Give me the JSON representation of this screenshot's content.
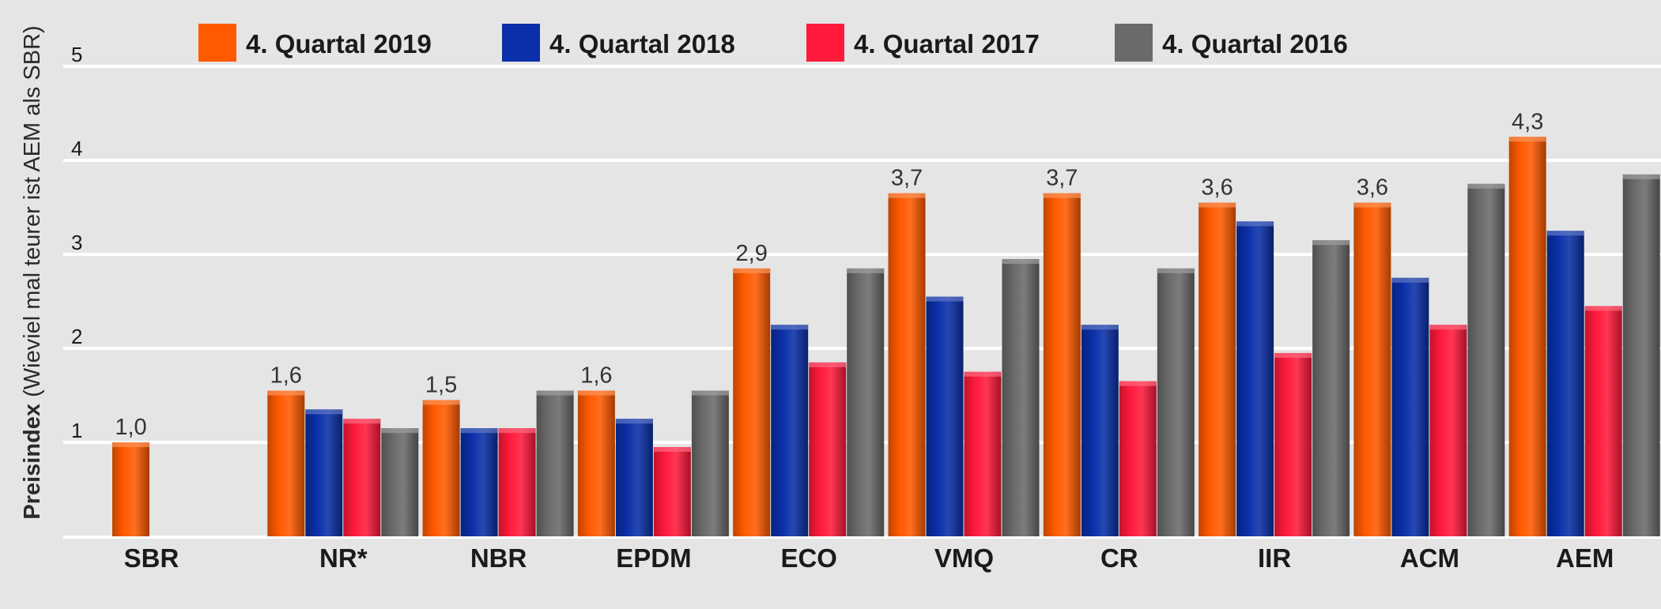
{
  "chart_data": {
    "type": "bar",
    "ylabel_bold": "Preisindex",
    "ylabel_rest": "(Wieviel mal teurer ist AEM als SBR)",
    "ylim": [
      0,
      5
    ],
    "yticks": [
      "1",
      "2",
      "3",
      "4",
      "5"
    ],
    "categories": [
      "SBR",
      "NR*",
      "NBR",
      "EPDM",
      "ECO",
      "VMQ",
      "CR",
      "IIR",
      "ACM",
      "AEM"
    ],
    "series": [
      {
        "name": "4. Quartal 2019",
        "color": "#ff5a00",
        "values": [
          1.0,
          1.55,
          1.45,
          1.55,
          2.85,
          3.65,
          3.65,
          3.55,
          3.55,
          4.25
        ]
      },
      {
        "name": "4. Quartal 2018",
        "color": "#0a2fa8",
        "values": [
          null,
          1.35,
          1.15,
          1.25,
          2.25,
          2.55,
          2.25,
          3.35,
          2.75,
          3.25
        ]
      },
      {
        "name": "4. Quartal 2017",
        "color": "#ff1a3c",
        "values": [
          null,
          1.25,
          1.15,
          0.95,
          1.85,
          1.75,
          1.65,
          1.95,
          2.25,
          2.45
        ]
      },
      {
        "name": "4. Quartal 2016",
        "color": "#6a6a6a",
        "values": [
          null,
          1.15,
          1.55,
          1.55,
          2.85,
          2.95,
          2.85,
          3.15,
          3.75,
          3.85
        ]
      }
    ],
    "data_labels": [
      "1,0",
      "1,6",
      "1,5",
      "1,6",
      "2,9",
      "3,7",
      "3,7",
      "3,6",
      "3,6",
      "4,3"
    ]
  }
}
